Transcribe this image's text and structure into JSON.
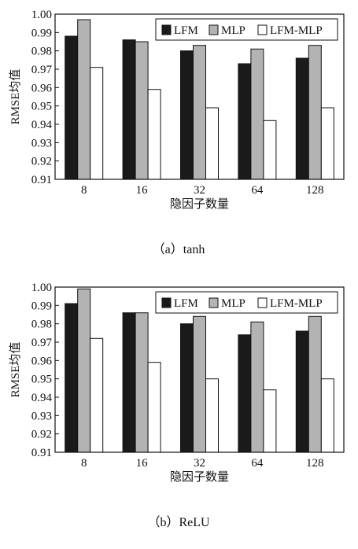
{
  "chart_data": [
    {
      "type": "bar",
      "caption": "（a）tanh",
      "categories": [
        "8",
        "16",
        "32",
        "64",
        "128"
      ],
      "series": [
        {
          "name": "LFM",
          "values": [
            0.988,
            0.986,
            0.98,
            0.973,
            0.976
          ],
          "color": "#1a1a1a"
        },
        {
          "name": "MLP",
          "values": [
            0.997,
            0.985,
            0.983,
            0.981,
            0.983
          ],
          "color": "#b3b3b3"
        },
        {
          "name": "LFM-MLP",
          "values": [
            0.971,
            0.959,
            0.949,
            0.942,
            0.949
          ],
          "color": "#ffffff"
        }
      ],
      "xlabel": "隐因子数量",
      "ylabel": "RMSE均值",
      "ylim": [
        0.91,
        1.0
      ],
      "yticks": [
        "0.91",
        "0.92",
        "0.93",
        "0.94",
        "0.95",
        "0.96",
        "0.97",
        "0.98",
        "0.99",
        "1.00"
      ],
      "legend": "top-right",
      "grid": false
    },
    {
      "type": "bar",
      "caption": "（b）ReLU",
      "categories": [
        "8",
        "16",
        "32",
        "64",
        "128"
      ],
      "series": [
        {
          "name": "LFM",
          "values": [
            0.991,
            0.986,
            0.98,
            0.974,
            0.976
          ],
          "color": "#1a1a1a"
        },
        {
          "name": "MLP",
          "values": [
            0.999,
            0.986,
            0.984,
            0.981,
            0.984
          ],
          "color": "#b3b3b3"
        },
        {
          "name": "LFM-MLP",
          "values": [
            0.972,
            0.959,
            0.95,
            0.944,
            0.95
          ],
          "color": "#ffffff"
        }
      ],
      "xlabel": "隐因子数量",
      "ylabel": "RMSE均值",
      "ylim": [
        0.91,
        1.0
      ],
      "yticks": [
        "0.91",
        "0.92",
        "0.93",
        "0.94",
        "0.95",
        "0.96",
        "0.97",
        "0.98",
        "0.99",
        "1.00"
      ],
      "legend": "top-right",
      "grid": false
    }
  ]
}
